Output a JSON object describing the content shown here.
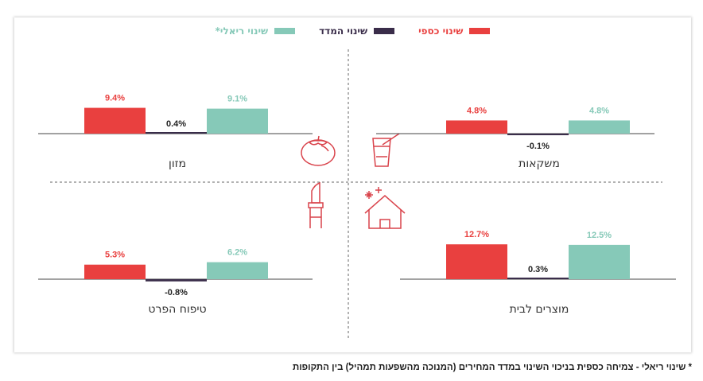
{
  "colors": {
    "nominal": "#e9403f",
    "index": "#3a2d4a",
    "real": "#86c9b8",
    "icon": "#d9434b",
    "divider": "#666666"
  },
  "legend": [
    {
      "key": "nominal",
      "label": "שינוי כספי"
    },
    {
      "key": "index",
      "label": "שינוי המדד"
    },
    {
      "key": "real",
      "label": "שינוי ריאלי*"
    }
  ],
  "footnote": "* שינוי ריאלי - צמיחה כספית בניכוי השינוי במדד המחירים (המנוכה מהשפעות תמהיל) בין התקופות",
  "chart_data": [
    {
      "type": "bar",
      "title": "מזון",
      "categories": [
        "שינוי כספי",
        "שינוי המדד",
        "שינוי ריאלי*"
      ],
      "values": [
        9.4,
        0.4,
        9.1
      ],
      "labels": [
        "9.4%",
        "0.4%",
        "9.1%"
      ],
      "icon": "tomato-icon"
    },
    {
      "type": "bar",
      "title": "משקאות",
      "categories": [
        "שינוי כספי",
        "שינוי המדד",
        "שינוי ריאלי*"
      ],
      "values": [
        4.8,
        -0.1,
        4.8
      ],
      "labels": [
        "4.8%",
        "-0.1%",
        "4.8%"
      ],
      "icon": "drink-icon"
    },
    {
      "type": "bar",
      "title": "טיפוח הפרט",
      "categories": [
        "שינוי כספי",
        "שינוי המדד",
        "שינוי ריאלי*"
      ],
      "values": [
        5.3,
        -0.8,
        6.2
      ],
      "labels": [
        "5.3%",
        "-0.8%",
        "6.2%"
      ],
      "icon": "lipstick-icon"
    },
    {
      "type": "bar",
      "title": "מוצרים לבית",
      "categories": [
        "שינוי כספי",
        "שינוי המדד",
        "שינוי ריאלי*"
      ],
      "values": [
        12.7,
        0.3,
        12.5
      ],
      "labels": [
        "12.7%",
        "0.3%",
        "12.5%"
      ],
      "icon": "house-icon"
    }
  ]
}
